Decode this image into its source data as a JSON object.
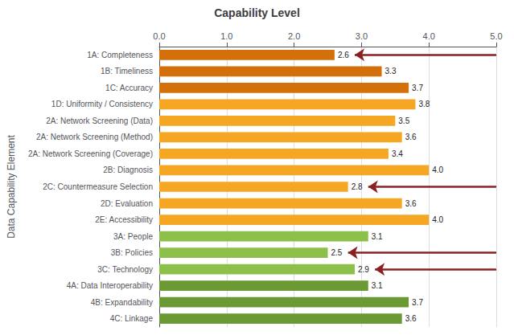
{
  "chart_data": {
    "type": "bar",
    "orientation": "horizontal",
    "title": "Capability Level",
    "ylabel": "Data Capability Element",
    "categories": [
      "1A: Completeness",
      "1B: Timeliness",
      "1C: Accuracy",
      "1D: Uniformity / Consistency",
      "2A: Network Screening (Data)",
      "2A: Network Screening (Method)",
      "2A: Network Screening (Coverage)",
      "2B: Diagnosis",
      "2C: Countermeasure Selection",
      "2D: Evaluation",
      "2E: Accessibility",
      "3A: People",
      "3B: Policies",
      "3C: Technology",
      "4A: Data Interoperability",
      "4B: Expandability",
      "4C: Linkage"
    ],
    "values": [
      2.6,
      3.3,
      3.7,
      3.8,
      3.5,
      3.6,
      3.4,
      4.0,
      2.8,
      3.6,
      4.0,
      3.1,
      2.5,
      2.9,
      3.1,
      3.7,
      3.6
    ],
    "value_labels": [
      "2.6",
      "3.3",
      "3.7",
      "3.8",
      "3.5",
      "3.6",
      "3.4",
      "4.0",
      "2.8",
      "3.6",
      "4.0",
      "3.1",
      "2.5",
      "2.9",
      "3.1",
      "3.7",
      "3.6"
    ],
    "data_labels": true,
    "colors": [
      "#D4700A",
      "#D4700A",
      "#D4700A",
      "#F5A623",
      "#F5A623",
      "#F5A623",
      "#F5A623",
      "#F5A623",
      "#F5A623",
      "#F5A623",
      "#F5A623",
      "#8DC04A",
      "#8DC04A",
      "#8DC04A",
      "#6B9A35",
      "#6B9A35",
      "#6B9A35"
    ],
    "annotations": [
      {
        "category": "1A: Completeness",
        "type": "arrow",
        "color": "#8B2020"
      },
      {
        "category": "2C: Countermeasure Selection",
        "type": "arrow",
        "color": "#8B2020"
      },
      {
        "category": "3B: Policies",
        "type": "arrow",
        "color": "#8B2020"
      },
      {
        "category": "3C: Technology",
        "type": "arrow",
        "color": "#8B2020"
      }
    ],
    "xlim": [
      0.0,
      5.0
    ],
    "xticks": [
      {
        "value": 0.0,
        "label": "0.0"
      },
      {
        "value": 1.0,
        "label": "1.0"
      },
      {
        "value": 2.0,
        "label": "2.0"
      },
      {
        "value": 3.0,
        "label": "3.0"
      },
      {
        "value": 4.0,
        "label": "4.0"
      },
      {
        "value": 5.0,
        "label": "5.0"
      }
    ],
    "grid": true
  }
}
